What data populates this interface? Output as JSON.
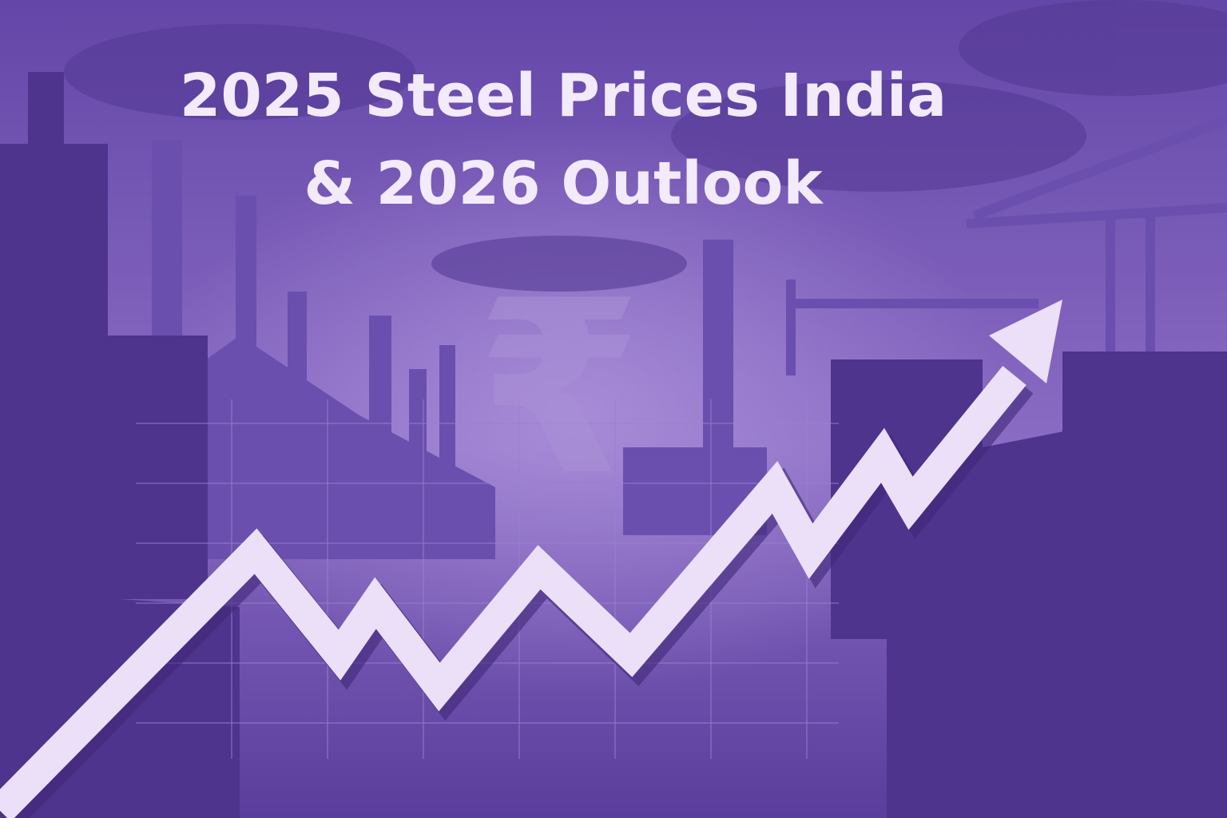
{
  "title": {
    "line1": "2025 Steel Prices India",
    "line2": "& 2026 Outlook"
  },
  "symbol": "₹"
}
